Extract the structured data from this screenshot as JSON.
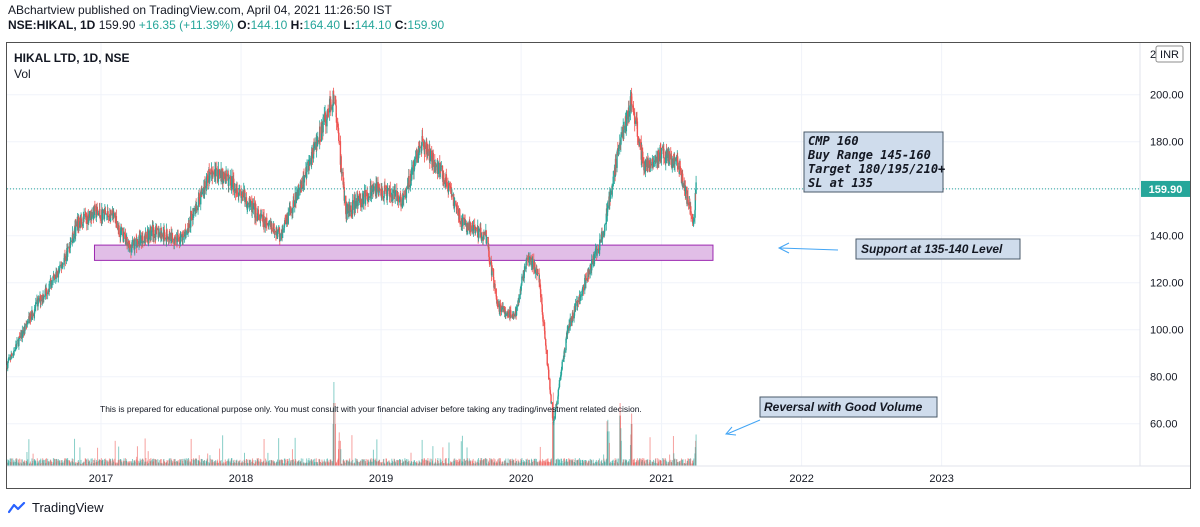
{
  "header": {
    "publisher_line": "ABchartview published on TradingView.com, April 04, 2021 11:26:50 IST",
    "symbol": "NSE:HIKAL, 1D",
    "last": "159.90",
    "change": "+16.35 (+11.39%)",
    "o_label": "O:",
    "o": "144.10",
    "h_label": "H:",
    "h": "164.40",
    "l_label": "L:",
    "l": "144.10",
    "c_label": "C:",
    "c": "159.90"
  },
  "legend": {
    "title": "HIKAL LTD, 1D, NSE",
    "vol": "Vol"
  },
  "currency_badge": "INR",
  "last_price_badge": "159.90",
  "annotations": {
    "trade_box": [
      "CMP 160",
      "Buy Range 145-160",
      "Target 180/195/210+",
      "SL at 135"
    ],
    "support": "Support at 135-140 Level",
    "reversal": "Reversal with Good Volume",
    "disclaimer": "This is prepared for educational purpose only. You must consult with your financial adviser before taking any trading/investment related decision."
  },
  "footer": {
    "brand": "TradingView"
  },
  "colors": {
    "up": "#26a69a",
    "down": "#ef5350",
    "support_zone_fill": "#e1bee7",
    "support_zone_border": "#9c27b0",
    "note_fill": "#cfdcec",
    "last_price_line": "#26a69a"
  },
  "chart_data": {
    "type": "candlestick",
    "title": "HIKAL LTD, 1D, NSE",
    "y_axis": {
      "ticks": [
        60,
        80,
        100,
        120,
        140,
        160,
        180,
        200
      ],
      "range": [
        42,
        222
      ],
      "side": "right",
      "top_label_partial": "220"
    },
    "x_axis": {
      "ticks": [
        "2017",
        "2018",
        "2019",
        "2020",
        "2021",
        "2022",
        "2023"
      ],
      "range": [
        "2016-05-01",
        "2024-06-01"
      ]
    },
    "support_zone": {
      "low": 129.5,
      "high": 136,
      "from": "2016-12-15",
      "to": "2021-05-15"
    },
    "last_price": 159.9,
    "price_path_approx": [
      {
        "date": "2016-05-01",
        "close": 85
      },
      {
        "date": "2016-07-15",
        "close": 110
      },
      {
        "date": "2016-09-15",
        "close": 125
      },
      {
        "date": "2016-11-01",
        "close": 145
      },
      {
        "date": "2016-12-15",
        "close": 150
      },
      {
        "date": "2017-02-01",
        "close": 148
      },
      {
        "date": "2017-03-15",
        "close": 135
      },
      {
        "date": "2017-05-15",
        "close": 142
      },
      {
        "date": "2017-08-01",
        "close": 138
      },
      {
        "date": "2017-10-15",
        "close": 168
      },
      {
        "date": "2017-12-15",
        "close": 162
      },
      {
        "date": "2018-02-15",
        "close": 148
      },
      {
        "date": "2018-04-15",
        "close": 140
      },
      {
        "date": "2018-06-15",
        "close": 165
      },
      {
        "date": "2018-09-01",
        "close": 200
      },
      {
        "date": "2018-10-01",
        "close": 150
      },
      {
        "date": "2018-12-15",
        "close": 160
      },
      {
        "date": "2019-03-01",
        "close": 155
      },
      {
        "date": "2019-04-15",
        "close": 180
      },
      {
        "date": "2019-06-15",
        "close": 165
      },
      {
        "date": "2019-08-01",
        "close": 145
      },
      {
        "date": "2019-10-01",
        "close": 140
      },
      {
        "date": "2019-11-01",
        "close": 110
      },
      {
        "date": "2019-12-15",
        "close": 105
      },
      {
        "date": "2020-01-15",
        "close": 130
      },
      {
        "date": "2020-02-15",
        "close": 125
      },
      {
        "date": "2020-03-25",
        "close": 60
      },
      {
        "date": "2020-05-01",
        "close": 100
      },
      {
        "date": "2020-06-15",
        "close": 120
      },
      {
        "date": "2020-08-01",
        "close": 140
      },
      {
        "date": "2020-09-15",
        "close": 180
      },
      {
        "date": "2020-10-15",
        "close": 198
      },
      {
        "date": "2020-11-15",
        "close": 170
      },
      {
        "date": "2021-01-01",
        "close": 175
      },
      {
        "date": "2021-02-15",
        "close": 170
      },
      {
        "date": "2021-03-25",
        "close": 145
      },
      {
        "date": "2021-04-01",
        "close": 159.9
      }
    ],
    "volume_spikes": [
      {
        "date": "2018-09-01",
        "relative": 1.0
      },
      {
        "date": "2018-09-15",
        "relative": 0.4
      },
      {
        "date": "2020-03-25",
        "relative": 0.7
      },
      {
        "date": "2020-08-15",
        "relative": 0.55
      },
      {
        "date": "2020-09-15",
        "relative": 0.6
      },
      {
        "date": "2020-10-15",
        "relative": 0.5
      },
      {
        "date": "2021-04-01",
        "relative": 0.3
      }
    ]
  }
}
